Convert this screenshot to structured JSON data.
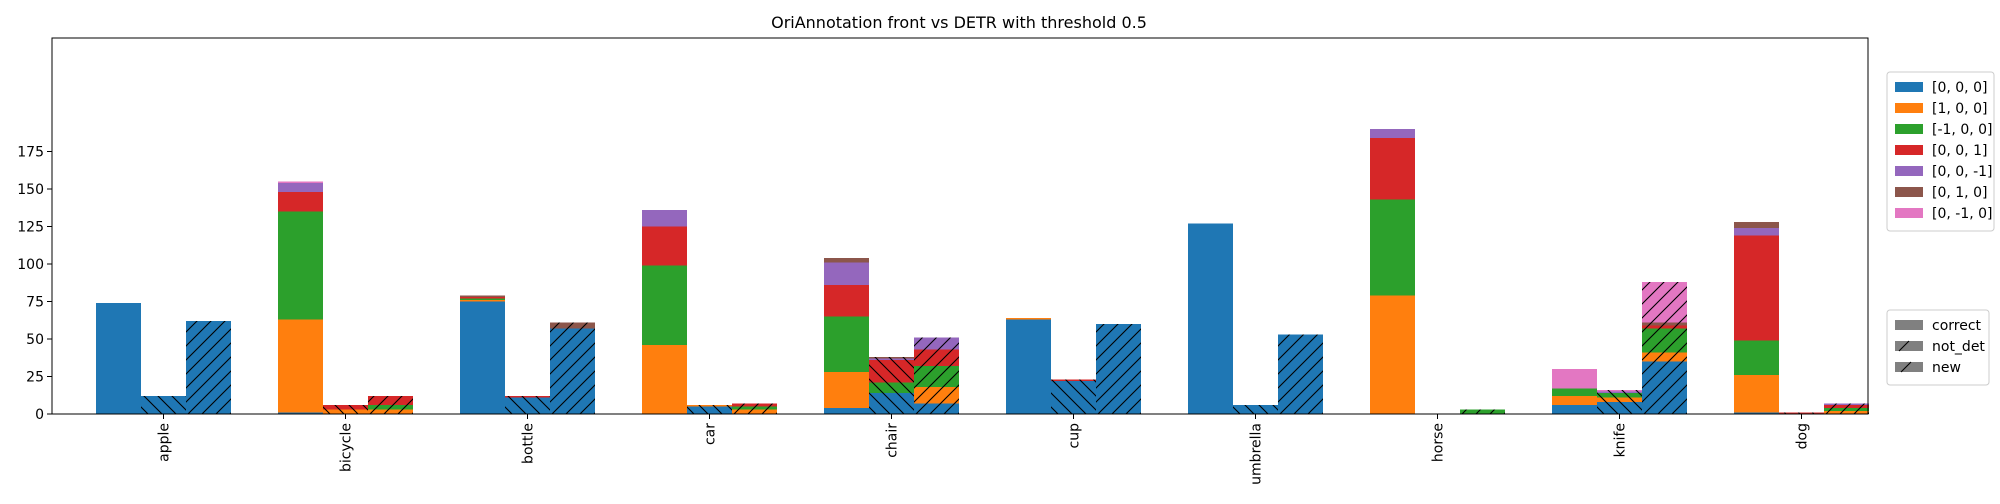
{
  "chart_data": {
    "type": "bar",
    "title": "OriAnnotation front vs DETR with threshold 0.5",
    "xlabel": "",
    "ylabel": "",
    "ylim": [
      0,
      200
    ],
    "yticks": [
      0,
      25,
      50,
      75,
      100,
      125,
      150,
      175
    ],
    "grid": false,
    "categories": [
      "apple",
      "bicycle",
      "bottle",
      "car",
      "chair",
      "cup",
      "umbrella",
      "horse",
      "knife",
      "dog"
    ],
    "group_types": [
      "correct",
      "not_det",
      "new"
    ],
    "series": [
      {
        "name": "[0, 0, 0]",
        "color": "#1f77b4",
        "correct": [
          74,
          1,
          75,
          0,
          4,
          63,
          127,
          0,
          6,
          1
        ],
        "not_det": [
          12,
          0,
          11,
          5,
          14,
          22,
          6,
          0,
          8,
          0
        ],
        "new": [
          62,
          0,
          57,
          0,
          7,
          60,
          53,
          0,
          35,
          0
        ]
      },
      {
        "name": "[1, 0, 0]",
        "color": "#ff7f0e",
        "correct": [
          0,
          62,
          1,
          46,
          24,
          1,
          0,
          79,
          6,
          25
        ],
        "not_det": [
          0,
          3,
          0,
          1,
          0,
          0,
          0,
          0,
          3,
          0
        ],
        "new": [
          0,
          3,
          0,
          3,
          11,
          0,
          0,
          0,
          6,
          2
        ]
      },
      {
        "name": "[-1, 0, 0]",
        "color": "#2ca02c",
        "correct": [
          0,
          72,
          1,
          53,
          37,
          0,
          0,
          64,
          5,
          23
        ],
        "not_det": [
          0,
          0,
          0,
          0,
          7,
          0,
          0,
          0,
          3,
          0
        ],
        "new": [
          0,
          3,
          0,
          2,
          14,
          0,
          0,
          3,
          16,
          2
        ]
      },
      {
        "name": "[0, 0, 1]",
        "color": "#d62728",
        "correct": [
          0,
          13,
          1,
          26,
          21,
          0,
          0,
          41,
          0,
          70
        ],
        "not_det": [
          0,
          3,
          1,
          0,
          15,
          1,
          0,
          0,
          0,
          1
        ],
        "new": [
          0,
          6,
          0,
          2,
          11,
          0,
          0,
          0,
          2,
          2
        ]
      },
      {
        "name": "[0, 0, -1]",
        "color": "#9467bd",
        "correct": [
          0,
          6,
          0,
          11,
          15,
          0,
          0,
          6,
          0,
          5
        ],
        "not_det": [
          0,
          0,
          0,
          0,
          1,
          0,
          0,
          0,
          1,
          0
        ],
        "new": [
          0,
          0,
          0,
          0,
          8,
          0,
          0,
          0,
          0,
          1
        ]
      },
      {
        "name": "[0, 1, 0]",
        "color": "#8c564b",
        "correct": [
          0,
          0,
          1,
          0,
          3,
          0,
          0,
          0,
          0,
          4
        ],
        "not_det": [
          0,
          0,
          0,
          0,
          1,
          0,
          0,
          0,
          0,
          0
        ],
        "new": [
          0,
          0,
          4,
          0,
          0,
          0,
          0,
          0,
          2,
          0
        ]
      },
      {
        "name": "[0, -1, 0]",
        "color": "#e377c2",
        "correct": [
          0,
          1,
          0,
          0,
          0,
          0,
          0,
          0,
          13,
          0
        ],
        "not_det": [
          0,
          0,
          0,
          0,
          0,
          0,
          0,
          0,
          1,
          0
        ],
        "new": [
          0,
          0,
          0,
          0,
          0,
          0,
          0,
          0,
          27,
          0
        ]
      }
    ],
    "legend_series_placement": "right, upper",
    "legend_hatch_placement": "right, lower",
    "legend_hatch": [
      {
        "label": "correct",
        "hatch": "none"
      },
      {
        "label": "not_det",
        "hatch": "backslash"
      },
      {
        "label": "new",
        "hatch": "slash"
      }
    ]
  }
}
